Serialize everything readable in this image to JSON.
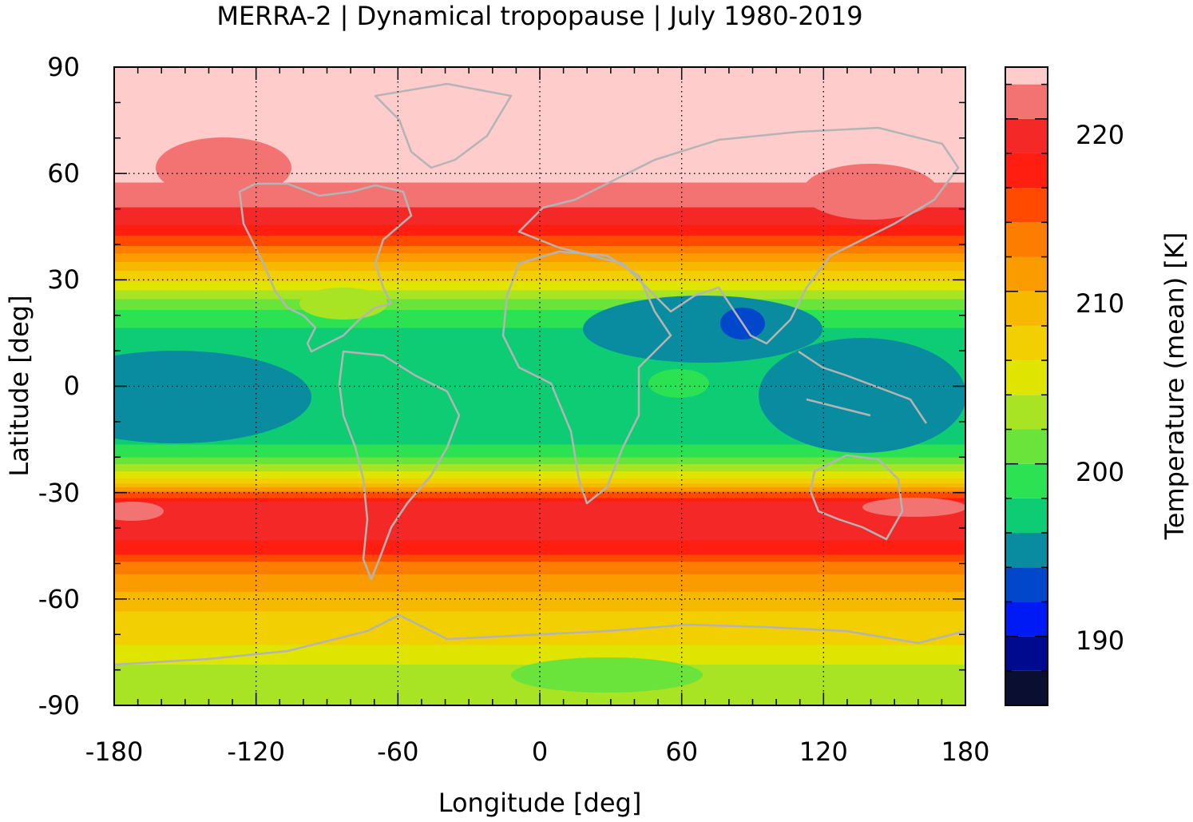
{
  "title": "MERRA-2 | Dynamical tropopause | July 1980-2019",
  "chart_data": {
    "type": "heatmap",
    "title": "MERRA-2 | Dynamical tropopause | July 1980-2019",
    "xlabel": "Longitude [deg]",
    "ylabel": "Latitude [deg]",
    "xlim": [
      -180,
      180
    ],
    "ylim": [
      -90,
      90
    ],
    "xticks": [
      "-180",
      "-120",
      "-60",
      "0",
      "60",
      "120",
      "180"
    ],
    "yticks": [
      "90",
      "60",
      "30",
      "0",
      "-30",
      "-60",
      "-90"
    ],
    "grid": "dotted",
    "coastlines": true,
    "colorbar": {
      "label": "Temperature (mean) [K]",
      "min": 186,
      "max": 223,
      "tick_labels": [
        "220",
        "210",
        "200",
        "190"
      ],
      "levels": [
        {
          "upper": 188,
          "color": "#0a0e30"
        },
        {
          "upper": 190,
          "color": "#000a8e"
        },
        {
          "upper": 192,
          "color": "#001af5"
        },
        {
          "upper": 194,
          "color": "#0047cc"
        },
        {
          "upper": 196,
          "color": "#0a8ca0"
        },
        {
          "upper": 198,
          "color": "#0ecc74"
        },
        {
          "upper": 200,
          "color": "#2de252"
        },
        {
          "upper": 202,
          "color": "#6ae33a"
        },
        {
          "upper": 204,
          "color": "#a8e324"
        },
        {
          "upper": 206,
          "color": "#dfe400"
        },
        {
          "upper": 208,
          "color": "#f2cf00"
        },
        {
          "upper": 210,
          "color": "#f7b800"
        },
        {
          "upper": 212,
          "color": "#fa9c00"
        },
        {
          "upper": 214,
          "color": "#fd7d00"
        },
        {
          "upper": 216,
          "color": "#ff4a00"
        },
        {
          "upper": 218,
          "color": "#ff1e10"
        },
        {
          "upper": 220,
          "color": "#f52828"
        },
        {
          "upper": 222,
          "color": "#f37373"
        },
        {
          "upper": 224,
          "color": "#ffcccc"
        }
      ]
    },
    "zonal_mean_profile": {
      "lat": [
        90,
        70,
        60,
        52,
        48,
        44,
        40,
        37,
        34,
        30,
        25,
        20,
        15,
        10,
        5,
        0,
        -5,
        -10,
        -15,
        -18,
        -20,
        -22,
        -24,
        -26,
        -28,
        -30,
        -33,
        -40,
        -46,
        -50,
        -55,
        -60,
        -65,
        -70,
        -75,
        -80,
        -85,
        -90
      ],
      "temperature": [
        223,
        223,
        222.5,
        220.5,
        219,
        217,
        214,
        211,
        209,
        206,
        202,
        199,
        197.5,
        197,
        197,
        197,
        197,
        197,
        197.5,
        198.5,
        200,
        202,
        204,
        206,
        209,
        214,
        219,
        219,
        217,
        213,
        211,
        209,
        207.5,
        207,
        205,
        203.5,
        203,
        202
      ]
    }
  }
}
